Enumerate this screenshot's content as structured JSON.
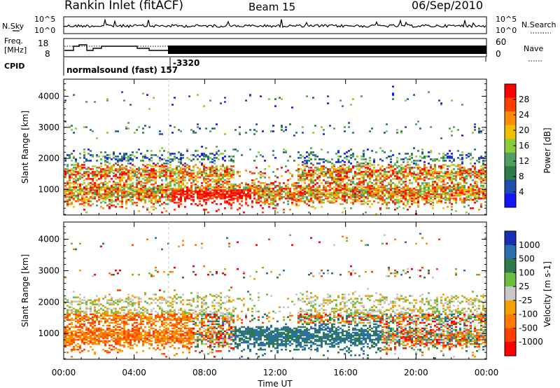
{
  "header": {
    "station": "Rankin Inlet (fitACF)",
    "beam": "Beam 15",
    "date": "06/Sep/2010"
  },
  "noise_panel": {
    "left_label": "N.Sky",
    "left_ticks": [
      "10^5",
      "10^0"
    ],
    "right_label": "N.Search",
    "right_ticks": [
      "10^5",
      "10^0"
    ]
  },
  "freq_panel": {
    "left_label_1": "Freq.",
    "left_label_2": "[MHz]",
    "left_ticks": [
      "18",
      "8"
    ],
    "right_label": "Nave",
    "right_ticks": [
      "60",
      "0"
    ]
  },
  "cpid": {
    "label": "CPID",
    "mode_text": "normalsound (fast) 157",
    "id_text": "-3320"
  },
  "colors": {
    "power_scale": [
      "#1414ff",
      "#1e4fb0",
      "#2f7a4a",
      "#4fa060",
      "#8ccc3c",
      "#f0c000",
      "#ff8c00",
      "#ff4000",
      "#ff0000"
    ],
    "velocity_scale": [
      "#1a2fb5",
      "#2a6fb0",
      "#2f7a4a",
      "#6abf40",
      "#c8c8c8",
      "#f5a000",
      "#ff7a00",
      "#ff4000",
      "#ff0000"
    ]
  },
  "chart_data": [
    {
      "type": "heatmap",
      "title": "",
      "xlabel": "Time UT",
      "ylabel": "Slant Range [km]",
      "x_ticks": [
        "00:00",
        "04:00",
        "08:00",
        "12:00",
        "16:00",
        "20:00",
        "00:00"
      ],
      "y_ticks": [
        "1000",
        "2000",
        "3000",
        "4000"
      ],
      "ylim": [
        180,
        4550
      ],
      "colorbar_label": "Power [dB]",
      "colorbar_ticks": [
        "4",
        "8",
        "12",
        "16",
        "20",
        "24",
        "28"
      ]
    },
    {
      "type": "heatmap",
      "title": "",
      "xlabel": "Time UT",
      "ylabel": "Slant Range [km]",
      "x_ticks": [
        "00:00",
        "04:00",
        "08:00",
        "12:00",
        "16:00",
        "20:00",
        "00:00"
      ],
      "y_ticks": [
        "1000",
        "2000",
        "3000",
        "4000"
      ],
      "ylim": [
        180,
        4550
      ],
      "colorbar_label": "Velocity [m s-1]",
      "colorbar_ticks": [
        "1000",
        "500",
        "100",
        "25",
        "-25",
        "-100",
        "-500",
        "-1000"
      ]
    }
  ]
}
